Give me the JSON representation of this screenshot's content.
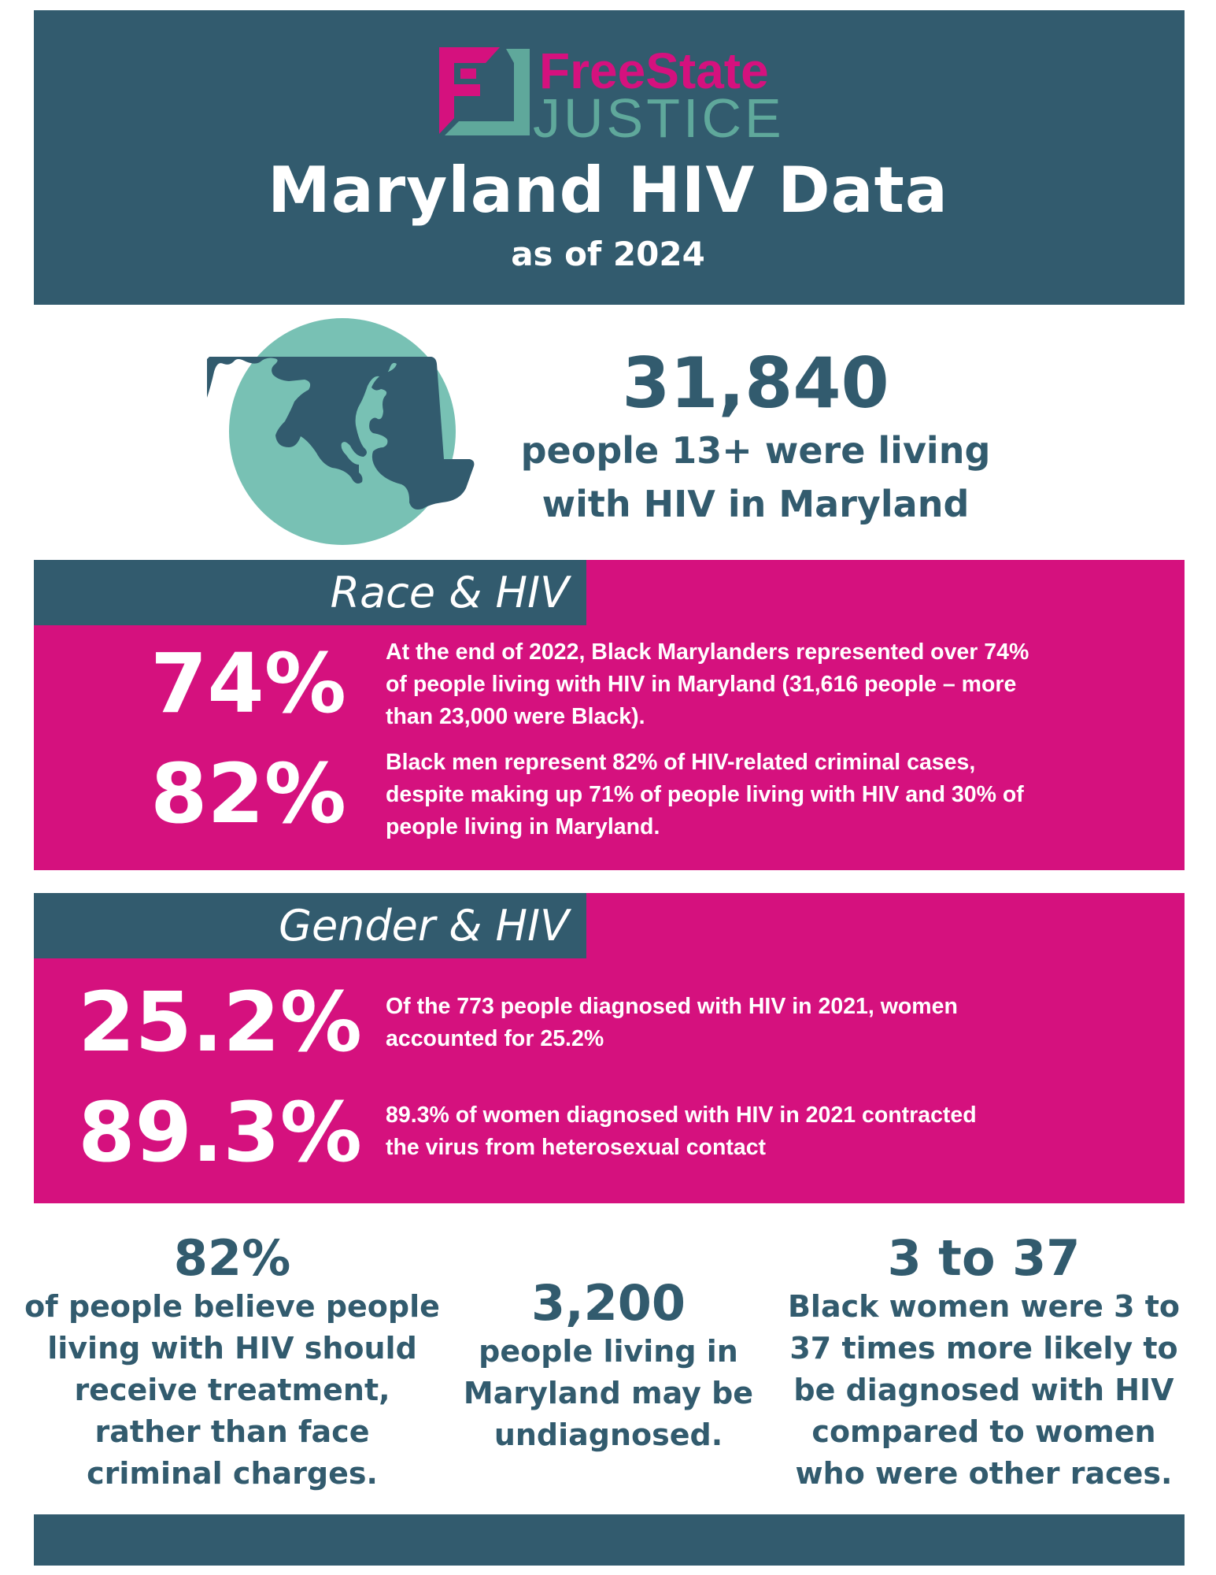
{
  "colors": {
    "dark_teal": "#325b6e",
    "pink": "#d5117e",
    "light_teal": "#78c1b4",
    "white": "#ffffff"
  },
  "logo": {
    "line1": "FreeState",
    "line2": "JUSTICE"
  },
  "header": {
    "title": "Maryland HIV Data",
    "subtitle": "as of 2024"
  },
  "overview": {
    "icon": "maryland-map-icon",
    "number": "31,840",
    "lines": [
      "people 13+ were living",
      "with HIV in Maryland"
    ]
  },
  "race": {
    "heading": "Race & HIV",
    "stats": [
      {
        "value": "74%",
        "lines": [
          "At the end of 2022, Black Marylanders represented over 74%",
          "of people living with HIV in Maryland (31,616 people – more",
          "than 23,000 were Black)."
        ]
      },
      {
        "value": "82%",
        "lines": [
          "Black men represent 82% of HIV-related criminal cases,",
          "despite making up 71% of people living with HIV and 30% of",
          "people living in Maryland."
        ]
      }
    ]
  },
  "gender": {
    "heading": "Gender & HIV",
    "stats": [
      {
        "value": "25.2%",
        "lines": [
          "Of the 773 people diagnosed with HIV in 2021, women",
          "accounted for 25.2%"
        ]
      },
      {
        "value": "89.3%",
        "lines": [
          "89.3% of women diagnosed with HIV in 2021 contracted",
          "the virus from heterosexual contact"
        ]
      }
    ]
  },
  "bottom": [
    {
      "value": "82%",
      "lines": [
        "of people believe people",
        "living with HIV should",
        "receive treatment,",
        "rather than face",
        "criminal charges."
      ]
    },
    {
      "value": "3,200",
      "lines": [
        "people living in",
        "Maryland may be",
        "undiagnosed."
      ]
    },
    {
      "value": "3 to 37",
      "lines": [
        "Black women were 3 to",
        "37 times more likely to",
        "be diagnosed with HIV",
        "compared to women",
        "who were other races."
      ]
    }
  ]
}
